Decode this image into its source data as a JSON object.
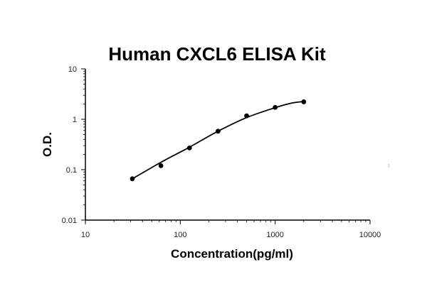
{
  "chart_data": {
    "type": "scatter",
    "title": "Human CXCL6 ELISA Kit",
    "xlabel": "Concentration(pg/ml)",
    "ylabel": "O.D.",
    "xscale": "log",
    "yscale": "log",
    "xlim": [
      10,
      10000
    ],
    "ylim": [
      0.01,
      10
    ],
    "xticks": [
      "10",
      "100",
      "1000",
      "10000"
    ],
    "yticks": [
      "0.01",
      "0.1",
      "1",
      "10"
    ],
    "grid": false,
    "legend": "none",
    "series": [
      {
        "points": [
          {
            "x": 31.25,
            "y": 0.066
          },
          {
            "x": 62.5,
            "y": 0.12
          },
          {
            "x": 125,
            "y": 0.27
          },
          {
            "x": 250,
            "y": 0.58
          },
          {
            "x": 500,
            "y": 1.17
          },
          {
            "x": 1000,
            "y": 1.72
          },
          {
            "x": 2000,
            "y": 2.22
          }
        ],
        "fit": [
          {
            "x": 31.25,
            "y": 0.066
          },
          {
            "x": 62.5,
            "y": 0.14
          },
          {
            "x": 125,
            "y": 0.28
          },
          {
            "x": 250,
            "y": 0.58
          },
          {
            "x": 500,
            "y": 1.08
          },
          {
            "x": 1000,
            "y": 1.7
          },
          {
            "x": 1500,
            "y": 2.1
          },
          {
            "x": 2000,
            "y": 2.25
          }
        ]
      }
    ]
  }
}
